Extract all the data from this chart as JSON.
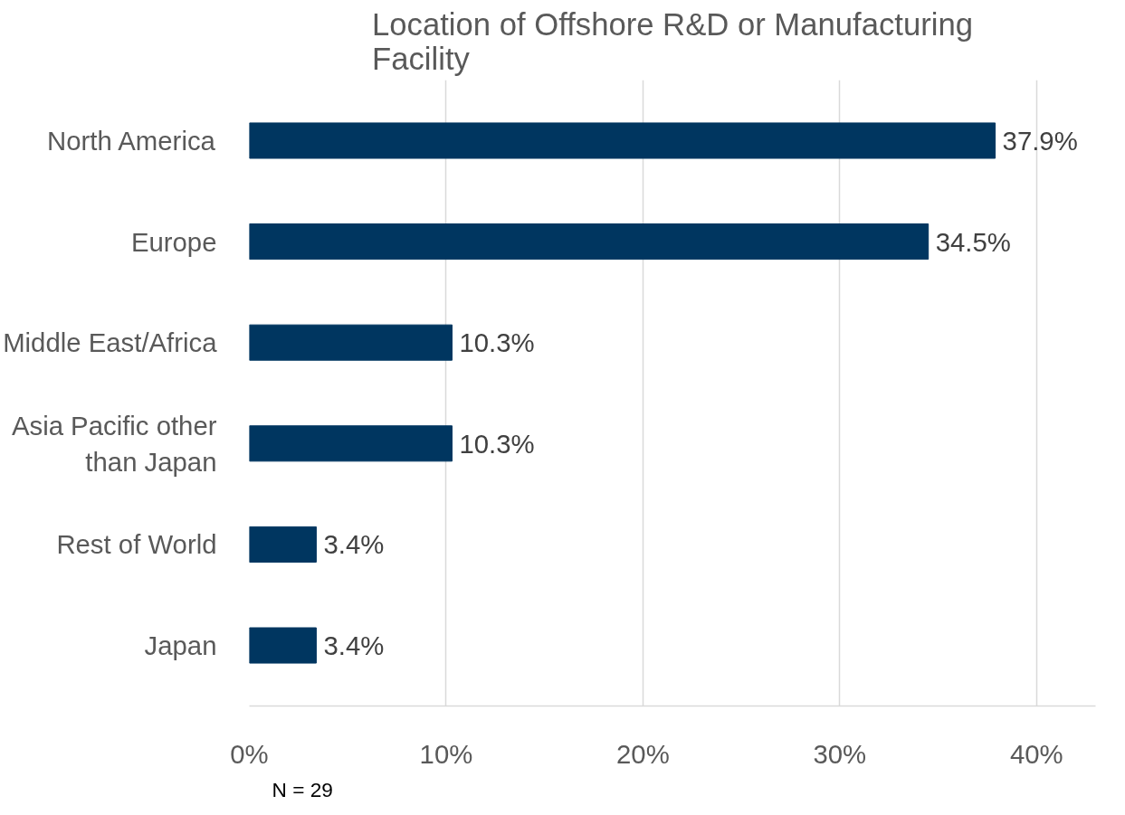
{
  "chart_data": {
    "type": "bar",
    "orientation": "horizontal",
    "title": "Location of Offshore R&D or Manufacturing Facility",
    "categories": [
      "North America",
      "Europe",
      "Middle East/Africa",
      "Asia Pacific other than Japan",
      "Rest of World",
      "Japan"
    ],
    "values": [
      37.9,
      34.5,
      10.3,
      10.3,
      3.4,
      3.4
    ],
    "value_labels": [
      "37.9%",
      "34.5%",
      "10.3%",
      "10.3%",
      "3.4%",
      "3.4%"
    ],
    "color": "#003660",
    "xlim": [
      0,
      43
    ],
    "xticks": [
      {
        "value": 0,
        "label": "0%"
      },
      {
        "value": 10,
        "label": "10%"
      },
      {
        "value": 20,
        "label": "20%"
      },
      {
        "value": 30,
        "label": "30%"
      },
      {
        "value": 40,
        "label": "40%"
      }
    ],
    "grid": "x",
    "annotations": [
      "N = 29"
    ]
  }
}
